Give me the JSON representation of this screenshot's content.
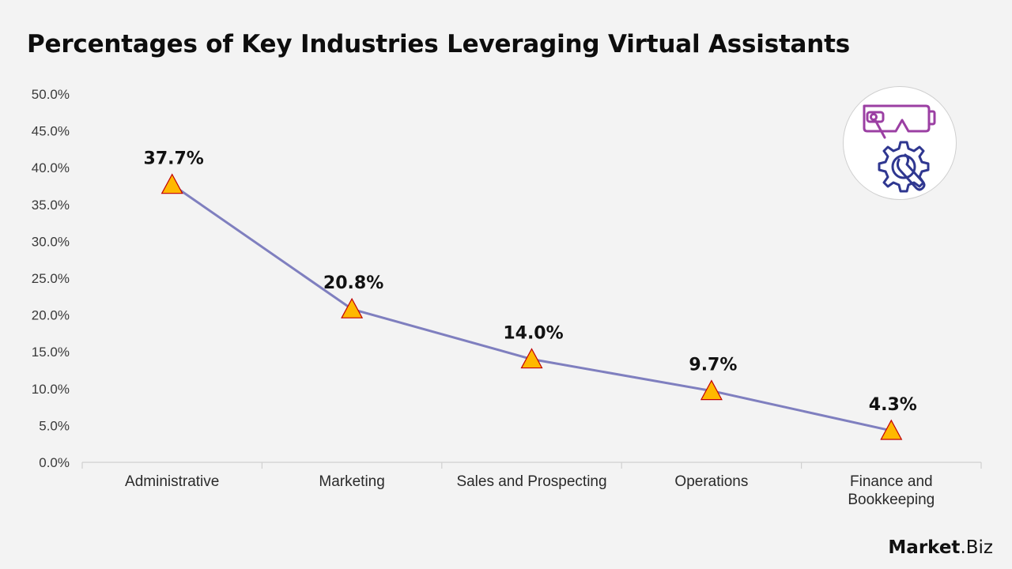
{
  "title": "Percentages of Key Industries Leveraging Virtual Assistants",
  "brand": {
    "name_bold": "Market",
    "name_rest": ".Biz"
  },
  "icon": {
    "name": "vr-headset-gear-icon",
    "colors": [
      "#9b3fa3",
      "#2f3790"
    ]
  },
  "colors": {
    "background": "#f3f3f3",
    "line": "#7f7fbf",
    "marker_fill": "#ffb800",
    "marker_stroke": "#c00000",
    "axis": "#d0d0d0"
  },
  "chart_data": {
    "type": "line",
    "categories": [
      "Administrative",
      "Marketing",
      "Sales and Prospecting",
      "Operations",
      "Finance and Bookkeeping"
    ],
    "category_lines": [
      [
        "Administrative"
      ],
      [
        "Marketing"
      ],
      [
        "Sales and Prospecting"
      ],
      [
        "Operations"
      ],
      [
        "Finance and",
        "Bookkeeping"
      ]
    ],
    "values": [
      37.7,
      20.8,
      14.0,
      9.7,
      4.3
    ],
    "data_labels": [
      "37.7%",
      "20.8%",
      "14.0%",
      "9.7%",
      "4.3%"
    ],
    "marker": "triangle",
    "ylim": [
      0,
      50
    ],
    "yticks": [
      0,
      5,
      10,
      15,
      20,
      25,
      30,
      35,
      40,
      45,
      50
    ],
    "ytick_labels": [
      "0.0%",
      "5.0%",
      "10.0%",
      "15.0%",
      "20.0%",
      "25.0%",
      "30.0%",
      "35.0%",
      "40.0%",
      "45.0%",
      "50.0%"
    ],
    "grid": false,
    "legend": "none",
    "xlabel": "",
    "ylabel": ""
  }
}
